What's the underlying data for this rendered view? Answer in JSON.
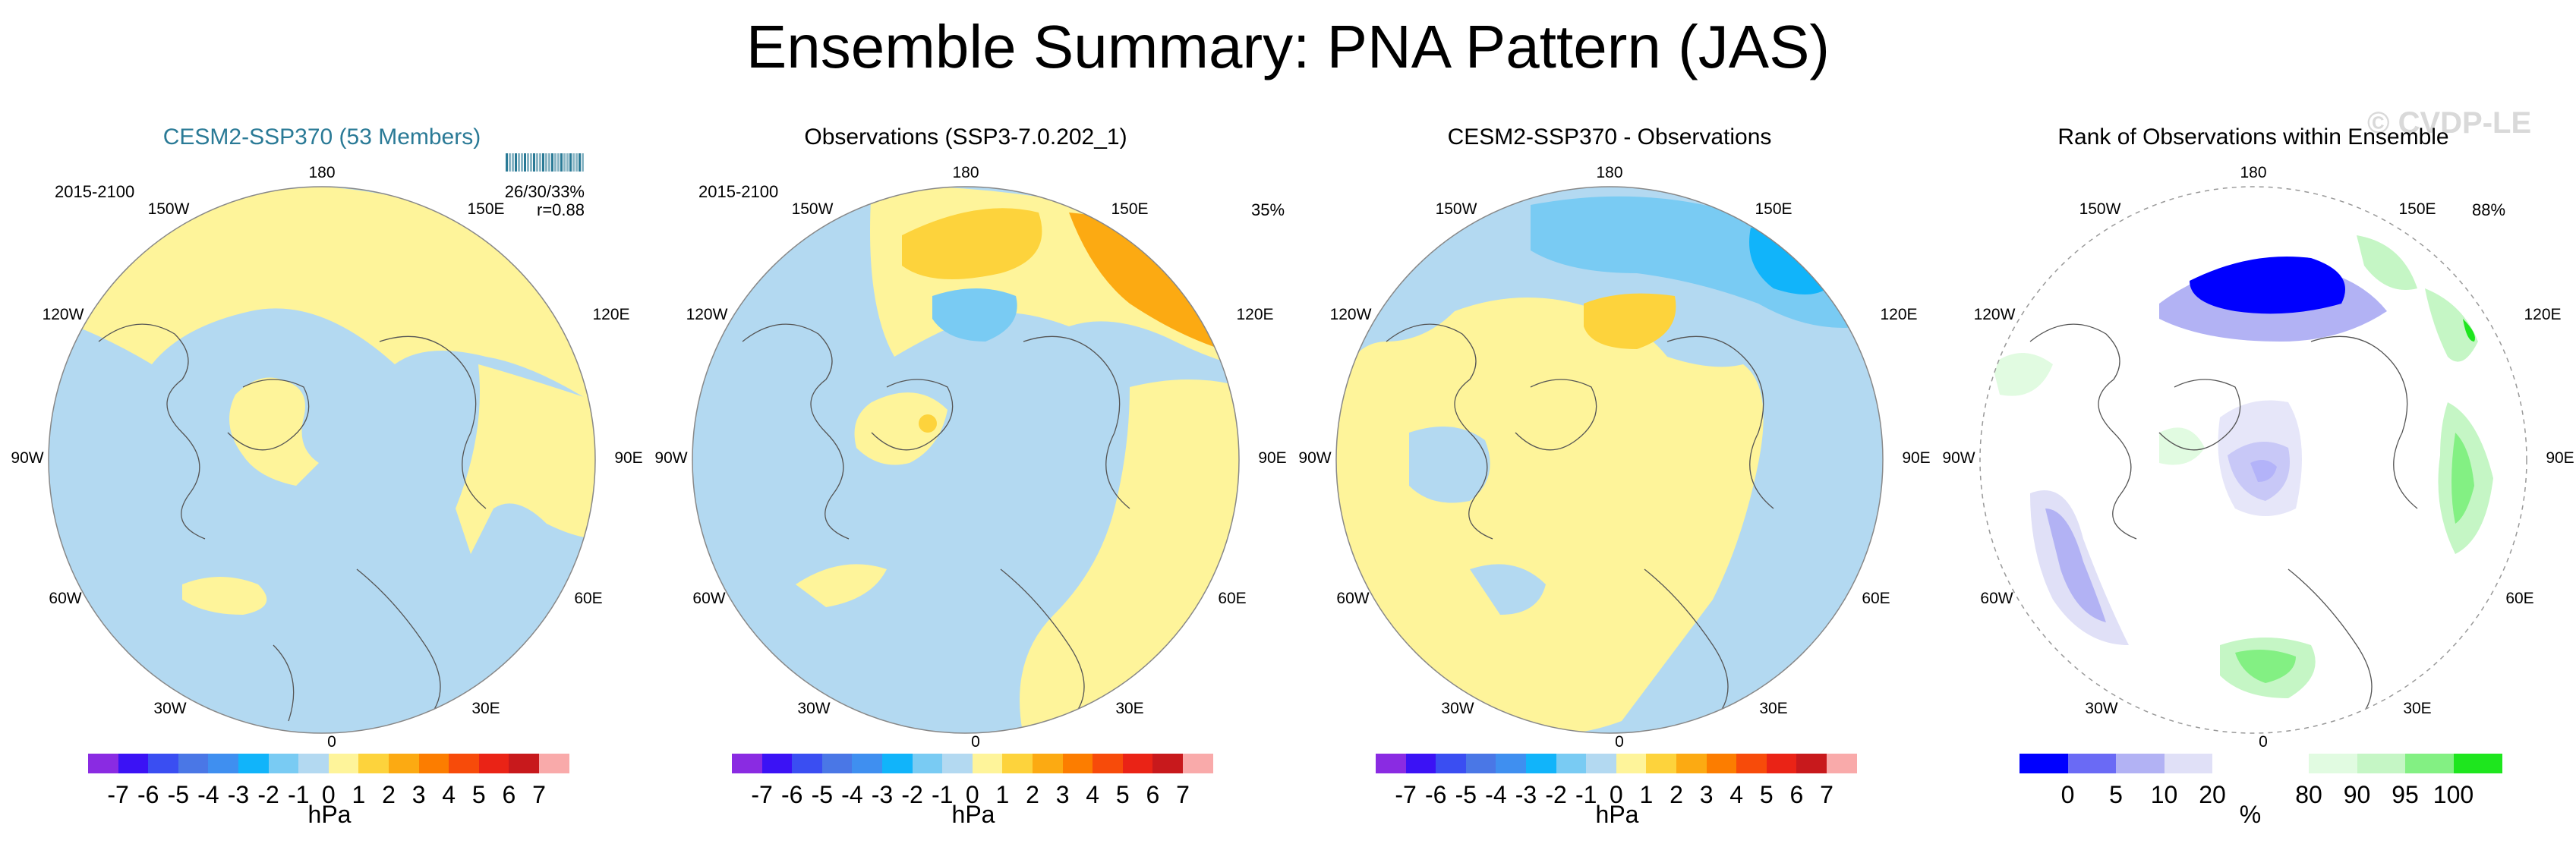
{
  "title": "Ensemble Summary: PNA Pattern (JAS)",
  "watermark": "© CVDP-LE",
  "lon_labels": [
    "180",
    "150E",
    "120E",
    "90E",
    "60E",
    "30E",
    "0",
    "30W",
    "60W",
    "90W",
    "120W",
    "150W"
  ],
  "colors": {
    "ocean_blue": "#b3d9f1",
    "land_yellow": "#fef49a",
    "teal": "#2a7a96"
  },
  "panels": [
    {
      "title": "CESM2-SSP370 (53 Members)",
      "period": "2015-2100",
      "stat1": "26/30/33%",
      "stat2": "r=0.88",
      "units": "hPa",
      "scale": "diff"
    },
    {
      "title": "Observations (SSP3-7.0.202_1)",
      "period": "2015-2100",
      "pct": "35%",
      "units": "hPa",
      "scale": "diff"
    },
    {
      "title": "CESM2-SSP370 - Observations",
      "units": "hPa",
      "scale": "diff"
    },
    {
      "title": "Rank of Observations within Ensemble",
      "pct": "88%",
      "units": "%",
      "scale": "rank"
    }
  ],
  "diff_colorbar": {
    "colors": [
      "#8a2be2",
      "#3b12f5",
      "#3a4ef2",
      "#4a77e6",
      "#3f8ff0",
      "#11b4fa",
      "#79cbf3",
      "#b3d9f1",
      "#fef49a",
      "#fdd33c",
      "#fcaa12",
      "#fc7d00",
      "#f74b0a",
      "#ea2316",
      "#c8191c",
      "#f9aaaa"
    ],
    "ticks": [
      "-7",
      "-6",
      "-5",
      "-4",
      "-3",
      "-2",
      "-1",
      "0",
      "1",
      "2",
      "3",
      "4",
      "5",
      "6",
      "7"
    ]
  },
  "rank_colorbar": {
    "colors": [
      "#0000ff",
      "#6a6af5",
      "#b2b2f4",
      "#e0e0f7",
      "#ffffff",
      "#ffffff",
      "#e1fbe1",
      "#c5f6c5",
      "#83f083",
      "#1ee61e"
    ],
    "ticks": [
      "0",
      "5",
      "10",
      "20",
      "80",
      "90",
      "95",
      "100"
    ]
  }
}
